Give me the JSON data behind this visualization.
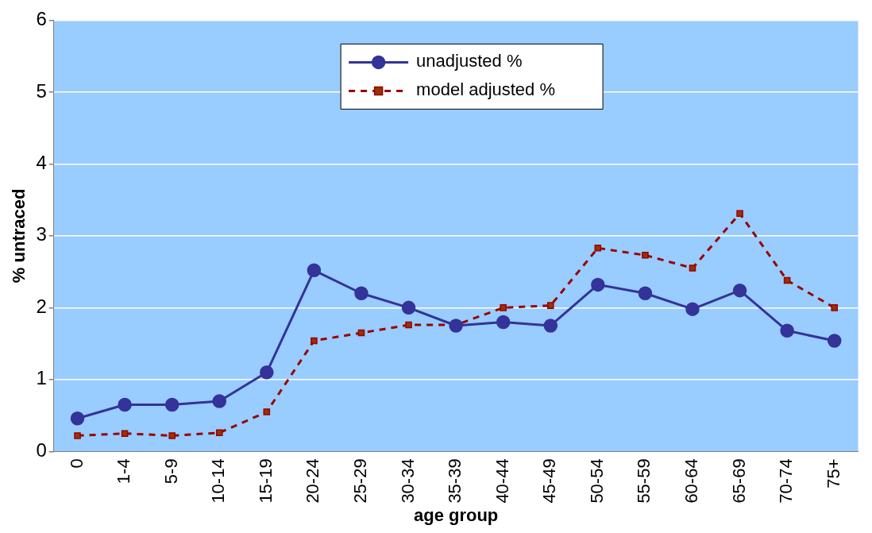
{
  "chart_data": {
    "type": "line",
    "xlabel": "age group",
    "ylabel": "% untraced",
    "categories": [
      "0",
      "1-4",
      "5-9",
      "10-14",
      "15-19",
      "20-24",
      "25-29",
      "30-34",
      "35-39",
      "40-44",
      "45-49",
      "50-54",
      "55-59",
      "60-64",
      "65-69",
      "70-74",
      "75+"
    ],
    "series": [
      {
        "name": "unadjusted %",
        "color": "#333399",
        "marker": "circle",
        "line_style": "solid",
        "values": [
          0.46,
          0.65,
          0.65,
          0.7,
          1.1,
          2.52,
          2.2,
          2.0,
          1.75,
          1.8,
          1.75,
          2.32,
          2.2,
          1.98,
          2.24,
          1.68,
          1.54
        ]
      },
      {
        "name": "model adjusted %",
        "color": "#990000",
        "marker": "square",
        "line_style": "dashed",
        "values": [
          0.22,
          0.25,
          0.22,
          0.26,
          0.55,
          1.54,
          1.65,
          1.76,
          1.76,
          2.0,
          2.03,
          2.83,
          2.73,
          2.55,
          3.31,
          2.38,
          2.0
        ]
      }
    ],
    "ylim": [
      0,
      6
    ],
    "yticks": [
      0,
      1,
      2,
      3,
      4,
      5,
      6
    ],
    "grid": "y",
    "legend": "top"
  }
}
